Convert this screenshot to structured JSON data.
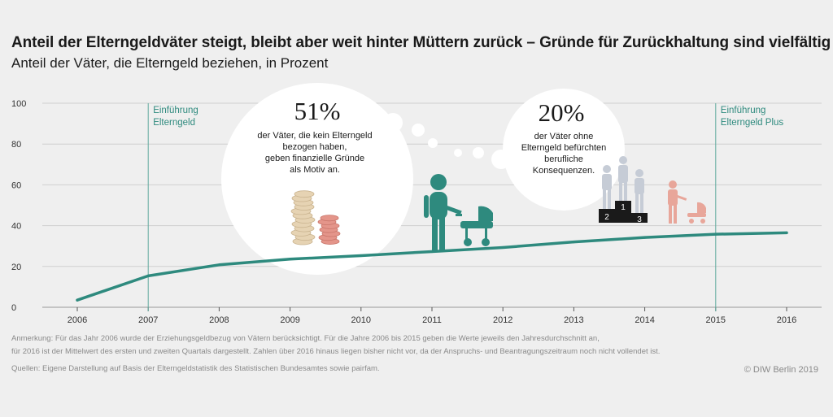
{
  "title": "Anteil der Elterngeldväter steigt, bleibt aber weit hinter Müttern zurück – Gründe für Zurückhaltung sind vielfältig",
  "subtitle": "Anteil der Väter, die Elterngeld beziehen, in Prozent",
  "colors": {
    "line": "#2e8a7e",
    "grid": "#cfcfcf",
    "marker": "#5fa99d",
    "figure_teal": "#2e8a7e",
    "figure_grey": "#c6ccd6",
    "figure_pink": "#e8a69a",
    "coin_beige": "#e6d3b3",
    "coin_red": "#e4958a",
    "bubble": "#ffffff"
  },
  "chart_data": {
    "type": "line",
    "x": [
      2006,
      2007,
      2008,
      2009,
      2010,
      2011,
      2012,
      2013,
      2014,
      2015,
      2016
    ],
    "series": [
      {
        "values": [
          3.5,
          15.4,
          20.8,
          23.6,
          25.3,
          27.3,
          29.3,
          32.0,
          34.2,
          35.8,
          36.5
        ]
      }
    ],
    "xticks": [
      "2006",
      "2007",
      "2008",
      "2009",
      "2010",
      "2011",
      "2012",
      "2013",
      "2014",
      "2015",
      "2016"
    ],
    "yticks": [
      "0",
      "20",
      "40",
      "60",
      "80",
      "100"
    ],
    "ylim": [
      0,
      100
    ],
    "xlim": [
      2006,
      2016
    ],
    "grid": true,
    "annotations": [
      {
        "x": 2007,
        "label_line1": "Einführung",
        "label_line2": "Elterngeld"
      },
      {
        "x": 2015,
        "label_line1": "Einführung",
        "label_line2": "Elterngeld Plus"
      }
    ]
  },
  "callouts": {
    "finance": {
      "value": "51%",
      "lines": [
        "der Väter, die kein Elterngeld",
        "bezogen haben,",
        "geben finanzielle Gründe",
        "als Motiv an."
      ]
    },
    "career": {
      "value": "20%",
      "lines": [
        "der Väter ohne",
        "Elterngeld befürchten",
        "berufliche",
        "Konsequenzen."
      ]
    }
  },
  "podium": [
    "2",
    "1",
    "3"
  ],
  "notes": {
    "line1": "Anmerkung: Für das Jahr 2006 wurde der Erziehungsgeldbezug von Vätern berücksichtigt. Für die Jahre 2006 bis 2015 geben die Werte jeweils den Jahresdurchschnitt an,",
    "line2": "für 2016 ist der Mittelwert des ersten und zweiten Quartals dargestellt. Zahlen über 2016 hinaus liegen bisher nicht vor, da der Anspruchs- und Beantragungszeitraum noch nicht vollendet ist.",
    "sources": "Quellen: Eigene Darstellung auf Basis der Elterngeldstatistik des Statistischen Bundesamtes sowie pairfam.",
    "copyright": "© DIW Berlin 2019"
  }
}
